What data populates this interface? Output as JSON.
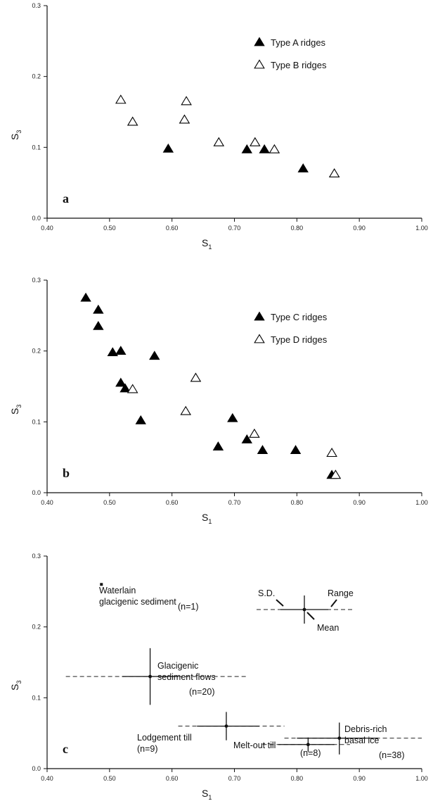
{
  "chart_data": [
    {
      "type": "scatter",
      "panel": "a",
      "xlabel": "S",
      "xlabel_sub": "1",
      "ylabel": "S",
      "ylabel_sub": "3",
      "xlim": [
        0.4,
        1.0
      ],
      "ylim": [
        0.0,
        0.3
      ],
      "xticks": [
        "0.40",
        "0.50",
        "0.60",
        "0.70",
        "0.80",
        "0.90",
        "1.00"
      ],
      "yticks": [
        "0.0",
        "0.1",
        "0.2",
        "0.3"
      ],
      "legend_position": "top-right",
      "series": [
        {
          "name": "Type A ridges",
          "marker": "filled-triangle",
          "points": [
            [
              0.594,
              0.098
            ],
            [
              0.72,
              0.097
            ],
            [
              0.748,
              0.097
            ],
            [
              0.81,
              0.07
            ]
          ]
        },
        {
          "name": "Type B ridges",
          "marker": "open-triangle",
          "points": [
            [
              0.518,
              0.167
            ],
            [
              0.537,
              0.136
            ],
            [
              0.62,
              0.139
            ],
            [
              0.623,
              0.165
            ],
            [
              0.675,
              0.107
            ],
            [
              0.733,
              0.107
            ],
            [
              0.764,
              0.097
            ],
            [
              0.86,
              0.063
            ]
          ]
        }
      ]
    },
    {
      "type": "scatter",
      "panel": "b",
      "xlabel": "S",
      "xlabel_sub": "1",
      "ylabel": "S",
      "ylabel_sub": "3",
      "xlim": [
        0.4,
        1.0
      ],
      "ylim": [
        0.0,
        0.3
      ],
      "xticks": [
        "0.40",
        "0.50",
        "0.60",
        "0.70",
        "0.80",
        "0.90",
        "1.00"
      ],
      "yticks": [
        "0.0",
        "0.1",
        "0.2",
        "0.3"
      ],
      "legend_position": "top-right",
      "series": [
        {
          "name": "Type C ridges",
          "marker": "filled-triangle",
          "points": [
            [
              0.462,
              0.275
            ],
            [
              0.482,
              0.258
            ],
            [
              0.482,
              0.235
            ],
            [
              0.505,
              0.198
            ],
            [
              0.518,
              0.2
            ],
            [
              0.518,
              0.155
            ],
            [
              0.525,
              0.147
            ],
            [
              0.55,
              0.102
            ],
            [
              0.572,
              0.193
            ],
            [
              0.674,
              0.065
            ],
            [
              0.697,
              0.105
            ],
            [
              0.72,
              0.075
            ],
            [
              0.745,
              0.06
            ],
            [
              0.798,
              0.06
            ],
            [
              0.856,
              0.025
            ]
          ]
        },
        {
          "name": "Type D ridges",
          "marker": "open-triangle",
          "points": [
            [
              0.537,
              0.146
            ],
            [
              0.622,
              0.115
            ],
            [
              0.638,
              0.162
            ],
            [
              0.732,
              0.083
            ],
            [
              0.856,
              0.056
            ],
            [
              0.862,
              0.025
            ]
          ]
        }
      ]
    },
    {
      "type": "scatter",
      "panel": "c",
      "xlabel": "S",
      "xlabel_sub": "1",
      "ylabel": "S",
      "ylabel_sub": "3",
      "xlim": [
        0.4,
        1.0
      ],
      "ylim": [
        0.0,
        0.3
      ],
      "xticks": [
        "0.40",
        "0.50",
        "0.60",
        "0.70",
        "0.80",
        "0.90",
        "1.00"
      ],
      "yticks": [
        "0.0",
        "0.1",
        "0.2",
        "0.3"
      ],
      "key": {
        "sd": "S.D.",
        "range": "Range",
        "mean": "Mean"
      },
      "groups": [
        {
          "label_lines": [
            "Waterlain",
            "glacigenic sediment"
          ],
          "n_label": "(n=1)",
          "mean": [
            0.487,
            0.26
          ],
          "point_only": true
        },
        {
          "label_lines": [
            "Glacigenic",
            "sediment flows"
          ],
          "n_label": "(n=20)",
          "mean": [
            0.565,
            0.13
          ],
          "sd_x": [
            0.52,
            0.61
          ],
          "sd_y": [
            0.09,
            0.17
          ],
          "range_x": [
            0.43,
            0.72
          ]
        },
        {
          "label_lines": [
            "Lodgement till"
          ],
          "n_label": "(n=9)",
          "mean": [
            0.687,
            0.06
          ],
          "sd_x": [
            0.64,
            0.74
          ],
          "sd_y": [
            0.04,
            0.08
          ],
          "range_x": [
            0.61,
            0.78
          ]
        },
        {
          "label_lines": [
            "Melt-out till"
          ],
          "n_label": "(n=8)",
          "mean": [
            0.818,
            0.034
          ],
          "sd_x": [
            0.77,
            0.86
          ],
          "sd_y": [
            0.024,
            0.044
          ],
          "range_x": [
            0.745,
            0.885
          ]
        },
        {
          "label_lines": [
            "Debris-rich",
            "basal ice"
          ],
          "n_label": "(n=38)",
          "mean": [
            0.868,
            0.043
          ],
          "sd_x": [
            0.8,
            0.93
          ],
          "sd_y": [
            0.02,
            0.065
          ],
          "range_x": [
            0.78,
            1.0
          ]
        }
      ]
    }
  ]
}
